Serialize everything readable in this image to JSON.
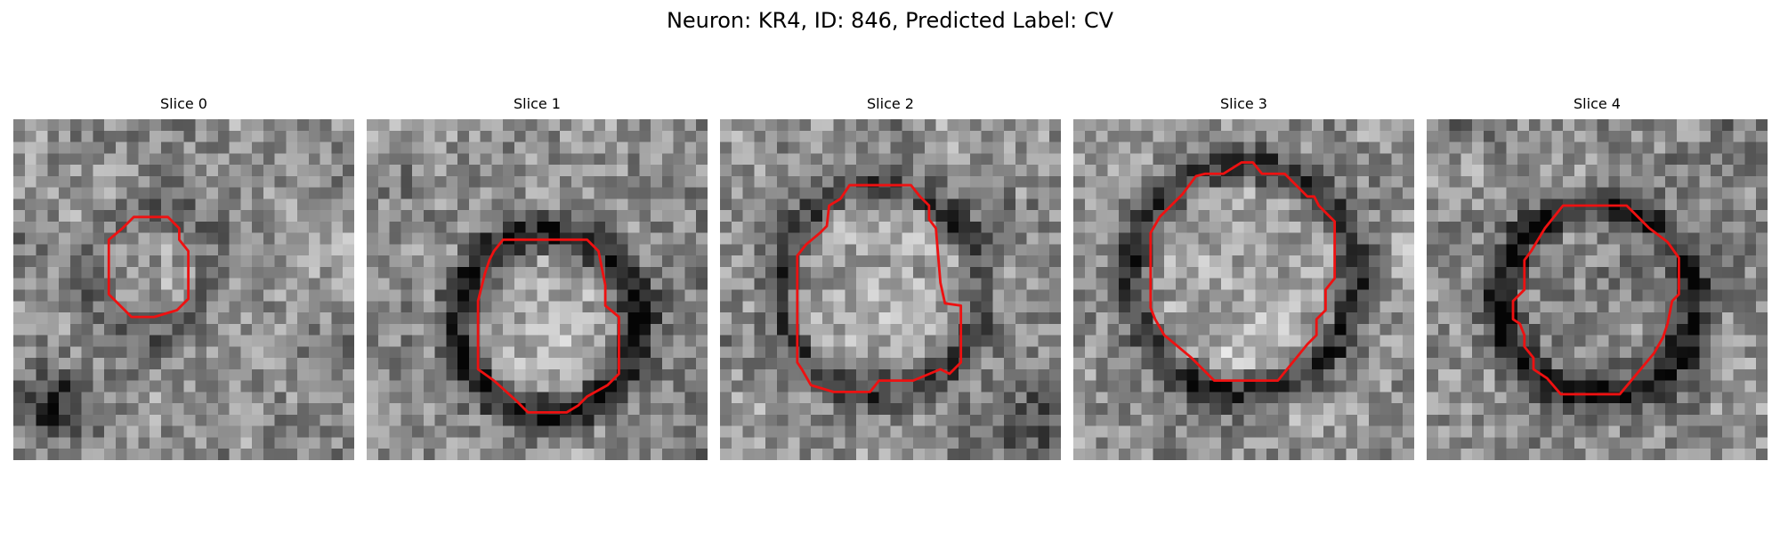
{
  "figure": {
    "title": "Neuron: KR4, ID: 846, Predicted Label: CV"
  },
  "contour_color": "#ee1111",
  "colormap": "grayscale",
  "panels": [
    {
      "title": "Slice 0",
      "ring": "faint",
      "blob_note": "dark spot lower-left"
    },
    {
      "title": "Slice 1",
      "ring": "dark"
    },
    {
      "title": "Slice 2",
      "ring": "medium"
    },
    {
      "title": "Slice 3",
      "ring": "medium"
    },
    {
      "title": "Slice 4",
      "ring": "dark"
    }
  ]
}
